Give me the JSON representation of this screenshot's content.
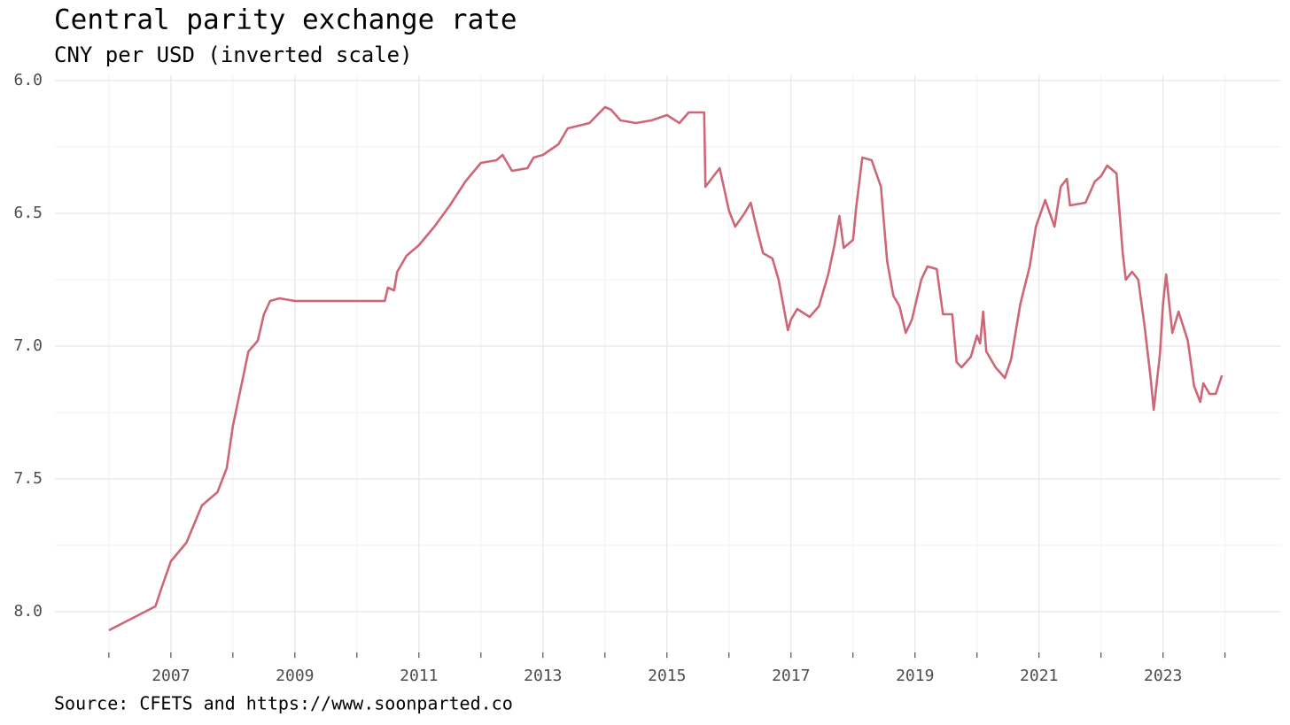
{
  "chart_data": {
    "type": "line",
    "title": "Central parity exchange rate",
    "subtitle": "CNY per USD (inverted scale)",
    "source": "Source: CFETS and https://www.soonparted.co",
    "color": "#cd6778",
    "x": [
      2006.0,
      2006.25,
      2006.5,
      2006.75,
      2006.85,
      2007.0,
      2007.25,
      2007.5,
      2007.75,
      2007.9,
      2008.0,
      2008.25,
      2008.4,
      2008.5,
      2008.6,
      2008.75,
      2009.0,
      2009.5,
      2010.0,
      2010.45,
      2010.5,
      2010.6,
      2010.65,
      2010.8,
      2011.0,
      2011.25,
      2011.5,
      2011.75,
      2012.0,
      2012.25,
      2012.35,
      2012.5,
      2012.75,
      2012.85,
      2013.0,
      2013.25,
      2013.4,
      2013.75,
      2014.0,
      2014.1,
      2014.25,
      2014.5,
      2014.75,
      2015.0,
      2015.2,
      2015.35,
      2015.6,
      2015.62,
      2015.75,
      2015.85,
      2016.0,
      2016.1,
      2016.25,
      2016.35,
      2016.45,
      2016.55,
      2016.7,
      2016.8,
      2016.95,
      2017.0,
      2017.1,
      2017.3,
      2017.45,
      2017.6,
      2017.7,
      2017.78,
      2017.85,
      2018.0,
      2018.05,
      2018.15,
      2018.3,
      2018.45,
      2018.55,
      2018.65,
      2018.75,
      2018.85,
      2018.95,
      2019.1,
      2019.2,
      2019.35,
      2019.45,
      2019.6,
      2019.67,
      2019.75,
      2019.9,
      2020.0,
      2020.05,
      2020.1,
      2020.15,
      2020.3,
      2020.45,
      2020.55,
      2020.7,
      2020.85,
      2020.95,
      2021.1,
      2021.25,
      2021.35,
      2021.45,
      2021.5,
      2021.75,
      2021.9,
      2022.0,
      2022.1,
      2022.25,
      2022.35,
      2022.4,
      2022.5,
      2022.6,
      2022.7,
      2022.8,
      2022.85,
      2022.95,
      2023.0,
      2023.05,
      2023.15,
      2023.25,
      2023.4,
      2023.5,
      2023.6,
      2023.65,
      2023.75,
      2023.85,
      2023.95
    ],
    "values": [
      8.07,
      8.04,
      8.01,
      7.98,
      7.91,
      7.81,
      7.74,
      7.6,
      7.55,
      7.46,
      7.3,
      7.02,
      6.98,
      6.88,
      6.83,
      6.82,
      6.83,
      6.83,
      6.83,
      6.83,
      6.78,
      6.79,
      6.72,
      6.66,
      6.62,
      6.55,
      6.47,
      6.38,
      6.31,
      6.3,
      6.28,
      6.34,
      6.33,
      6.29,
      6.28,
      6.24,
      6.18,
      6.16,
      6.1,
      6.11,
      6.15,
      6.16,
      6.15,
      6.13,
      6.16,
      6.12,
      6.12,
      6.4,
      6.36,
      6.33,
      6.49,
      6.55,
      6.5,
      6.46,
      6.56,
      6.65,
      6.67,
      6.75,
      6.94,
      6.9,
      6.86,
      6.89,
      6.85,
      6.73,
      6.62,
      6.51,
      6.63,
      6.6,
      6.48,
      6.29,
      6.3,
      6.4,
      6.68,
      6.81,
      6.85,
      6.95,
      6.9,
      6.75,
      6.7,
      6.71,
      6.88,
      6.88,
      7.06,
      7.08,
      7.04,
      6.96,
      6.99,
      6.87,
      7.02,
      7.08,
      7.12,
      7.05,
      6.84,
      6.7,
      6.55,
      6.45,
      6.55,
      6.4,
      6.37,
      6.47,
      6.46,
      6.38,
      6.36,
      6.32,
      6.35,
      6.65,
      6.75,
      6.72,
      6.75,
      6.92,
      7.12,
      7.24,
      7.03,
      6.84,
      6.73,
      6.95,
      6.87,
      6.98,
      7.15,
      7.21,
      7.14,
      7.18,
      7.18,
      7.11
    ],
    "xlim": [
      2005.13,
      2024.89
    ],
    "xticks": [
      2007,
      2009,
      2011,
      2013,
      2015,
      2017,
      2019,
      2021,
      2023
    ],
    "x_minor_ticks": [
      2006,
      2008,
      2010,
      2012,
      2014,
      2016,
      2018,
      2020,
      2022,
      2024
    ],
    "ylim": [
      5.98,
      8.18
    ],
    "y_inverted": true,
    "yticks": [
      {
        "value": 6,
        "label": "6.0"
      },
      6.5,
      {
        "value": 7,
        "label": "7.0"
      },
      7.5,
      {
        "value": 8,
        "label": "8.0"
      }
    ],
    "y_minor_ticks": [
      6.25,
      6.75,
      7.25,
      7.75
    ],
    "grid": true
  }
}
